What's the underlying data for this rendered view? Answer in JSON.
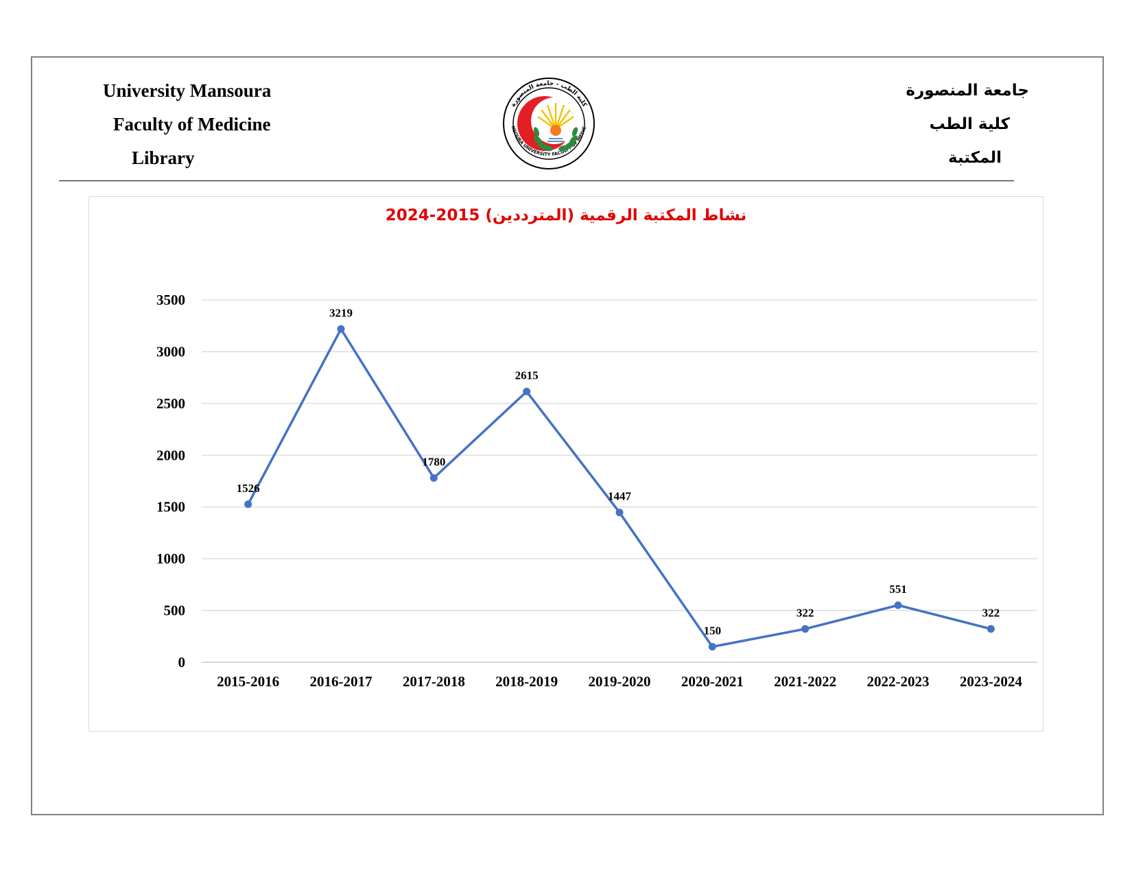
{
  "header": {
    "english": {
      "line1": "University Mansoura",
      "line2": "Faculty of Medicine",
      "line3": "Library"
    },
    "arabic": {
      "line1": "جامعة المنصورة",
      "line2": "كلية الطب",
      "line3": "المكتبة"
    },
    "logo": {
      "icon": "university-seal-icon",
      "ring_text_top": "كلية الطب - جامعة المنصورة",
      "ring_text_bottom": "MANSOURA UNIVERSITY FACULTY OF MEDICINE",
      "colors": {
        "crescent": "#e31e24",
        "wreath": "#2e8b3e",
        "rays": "#f2c200"
      }
    }
  },
  "chart_data": {
    "type": "line",
    "title": "نشاط المكتبة الرقمية (المترددين) 2015-2024",
    "title_color": "#e00000",
    "categories": [
      "2015-2016",
      "2016-2017",
      "2017-2018",
      "2018-2019",
      "2019-2020",
      "2020-2021",
      "2021-2022",
      "2022-2023",
      "2023-2024"
    ],
    "series": [
      {
        "values": [
          1526,
          3219,
          1780,
          2615,
          1447,
          150,
          322,
          551,
          322
        ],
        "color": "#4472c4"
      }
    ],
    "data_labels": [
      "1526",
      "3219",
      "1780",
      "2615",
      "1447",
      "150",
      "322",
      "551",
      "322"
    ],
    "ylim": [
      0,
      3500
    ],
    "yticks": [
      "0",
      "500",
      "1000",
      "1500",
      "2000",
      "2500",
      "3000",
      "3500"
    ],
    "ytick_values": [
      0,
      500,
      1000,
      1500,
      2000,
      2500,
      3000,
      3500
    ],
    "grid": "horizontal",
    "legend": "none",
    "xlabel": "",
    "ylabel": ""
  }
}
